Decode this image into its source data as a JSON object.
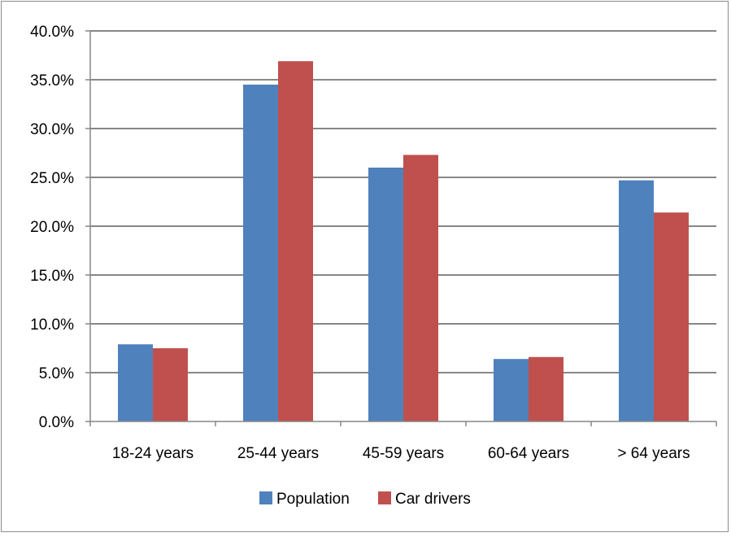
{
  "chart_data": {
    "type": "bar",
    "title": "",
    "xlabel": "",
    "ylabel": "",
    "categories": [
      "18-24 years",
      "25-44 years",
      "45-59 years",
      "60-64 years",
      "> 64 years"
    ],
    "series": [
      {
        "name": "Population",
        "color": "#4F81BD",
        "values": [
          7.9,
          34.5,
          26.0,
          6.4,
          24.7
        ]
      },
      {
        "name": "Car drivers",
        "color": "#C0504D",
        "values": [
          7.5,
          36.9,
          27.3,
          6.6,
          21.4
        ]
      }
    ],
    "ylim": [
      0,
      40
    ],
    "y_ticks": [
      "0.0%",
      "5.0%",
      "10.0%",
      "15.0%",
      "20.0%",
      "25.0%",
      "30.0%",
      "35.0%",
      "40.0%"
    ],
    "grid": true,
    "legend_position": "bottom"
  }
}
